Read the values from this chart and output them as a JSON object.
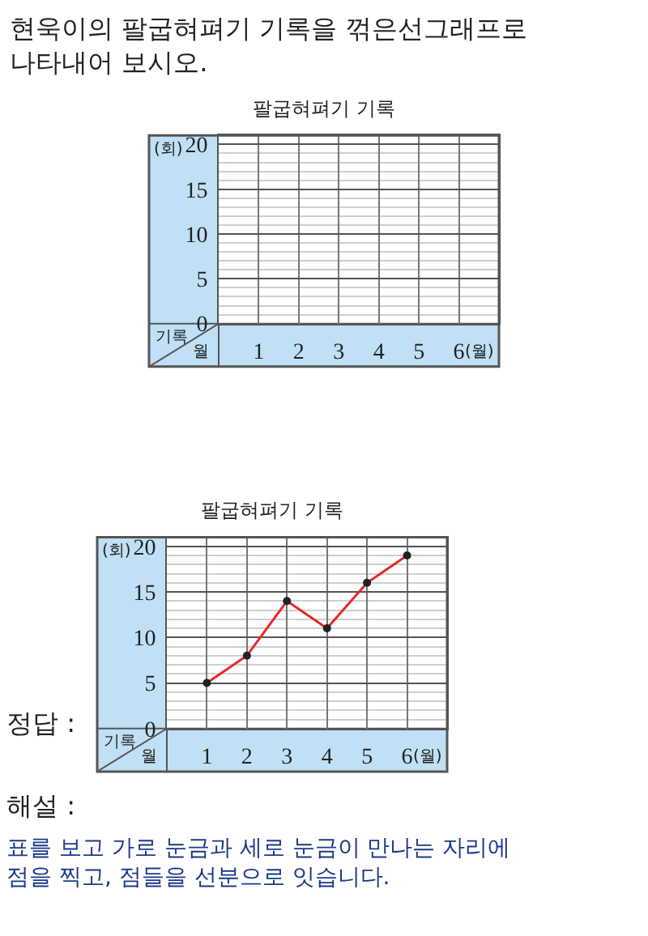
{
  "chart_data": [
    {
      "type": "line",
      "title": "팔굽혀펴기 기록",
      "xlabel": "(월)",
      "ylabel": "(회)",
      "xlim": [
        0,
        7
      ],
      "xticks": [
        1,
        2,
        3,
        4,
        5,
        6
      ],
      "ylim": [
        0,
        21
      ],
      "yticks": [
        0,
        5,
        10,
        15,
        20
      ],
      "grid": true,
      "annotations": [
        "기록",
        "월",
        "현욱이의 팔굽혀펴기 기록을 꺾은선그래프로 나타내어 보시오."
      ]
    },
    {
      "type": "line",
      "title": "팔굽혀펴기 기록",
      "xlabel": "(월)",
      "ylabel": "(회)",
      "x": [
        1,
        2,
        3,
        4,
        5,
        6
      ],
      "series": [
        {
          "color": "#e8262a",
          "values": [
            5,
            8,
            14,
            11,
            16,
            19
          ]
        }
      ],
      "xlim": [
        0,
        7
      ],
      "xticks": [
        1,
        2,
        3,
        4,
        5,
        6
      ],
      "ylim": [
        0,
        21
      ],
      "yticks": [
        0,
        5,
        10,
        15,
        20
      ],
      "grid": true,
      "marker": "circle",
      "line_style": "solid",
      "annotations": [
        "기록",
        "월",
        "정답 :",
        "해설 :",
        "표를 보고 가로 눈금과 세로 눈금이 만나는 자리에 점을 찍고, 점들을 선분으로 잇습니다."
      ]
    }
  ]
}
